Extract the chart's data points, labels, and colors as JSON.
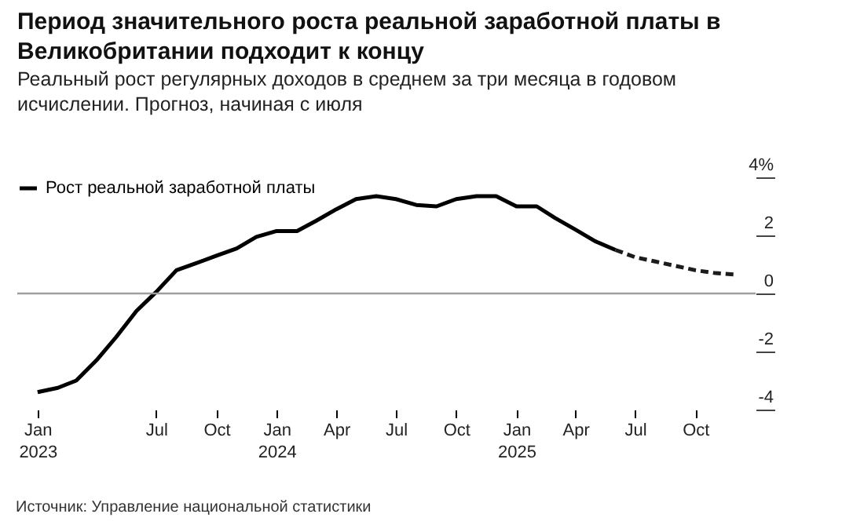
{
  "chart_data": {
    "type": "line",
    "title": "Период значительного роста реальной заработной платы в Великобритании подходит к концу",
    "subtitle": "Реальный рост регулярных доходов в среднем за три месяца в годовом исчислении. Прогноз, начиная с июля",
    "annotations": [
      "Источник: Управление национальной статистики"
    ],
    "series": [
      {
        "name": "Рост реальной заработной платы",
        "color": "#000000",
        "line_style": "solid",
        "x": [
          "2023-01",
          "2023-02",
          "2023-03",
          "2023-04",
          "2023-05",
          "2023-06",
          "2023-07",
          "2023-08",
          "2023-09",
          "2023-10",
          "2023-11",
          "2023-12",
          "2024-01",
          "2024-02",
          "2024-03",
          "2024-04",
          "2024-05",
          "2024-06",
          "2024-07",
          "2024-08",
          "2024-09",
          "2024-10",
          "2024-11",
          "2024-12",
          "2025-01",
          "2025-02",
          "2025-03",
          "2025-04",
          "2025-05",
          "2025-06"
        ],
        "values": [
          -3.4,
          -3.25,
          -3.0,
          -2.3,
          -1.5,
          -0.6,
          0.05,
          0.8,
          1.05,
          1.3,
          1.55,
          1.95,
          2.15,
          2.15,
          2.5,
          2.9,
          3.25,
          3.35,
          3.25,
          3.05,
          3.0,
          3.25,
          3.35,
          3.35,
          3.0,
          3.0,
          2.6,
          2.2,
          1.8,
          1.5
        ]
      },
      {
        "color": "#1c1c1c",
        "line_style": "dashed",
        "x": [
          "2025-06",
          "2025-07",
          "2025-08",
          "2025-09",
          "2025-10",
          "2025-11",
          "2025-12"
        ],
        "values": [
          1.5,
          1.25,
          1.1,
          0.95,
          0.8,
          0.7,
          0.65
        ]
      }
    ],
    "xlim": [
      "2022-12",
      "2026-01"
    ],
    "xticks": [
      {
        "value": "2023-01",
        "label": "Jan\n2023"
      },
      {
        "value": "2023-07",
        "label": "Jul"
      },
      {
        "value": "2023-10",
        "label": "Oct"
      },
      {
        "value": "2024-01",
        "label": "Jan\n2024"
      },
      {
        "value": "2024-04",
        "label": "Apr"
      },
      {
        "value": "2024-07",
        "label": "Jul"
      },
      {
        "value": "2024-10",
        "label": "Oct"
      },
      {
        "value": "2025-01",
        "label": "Jan\n2025"
      },
      {
        "value": "2025-04",
        "label": "Apr"
      },
      {
        "value": "2025-07",
        "label": "Jul"
      },
      {
        "value": "2025-10",
        "label": "Oct"
      }
    ],
    "ylim": [
      -4,
      4
    ],
    "yticks": [
      {
        "value": 4,
        "label": "4%"
      },
      2,
      0,
      -2,
      -4
    ],
    "ref_lines": [
      {
        "axis": "y",
        "value": 0,
        "color": "#9e9e9e"
      }
    ],
    "grid": false,
    "legend": "top left"
  }
}
